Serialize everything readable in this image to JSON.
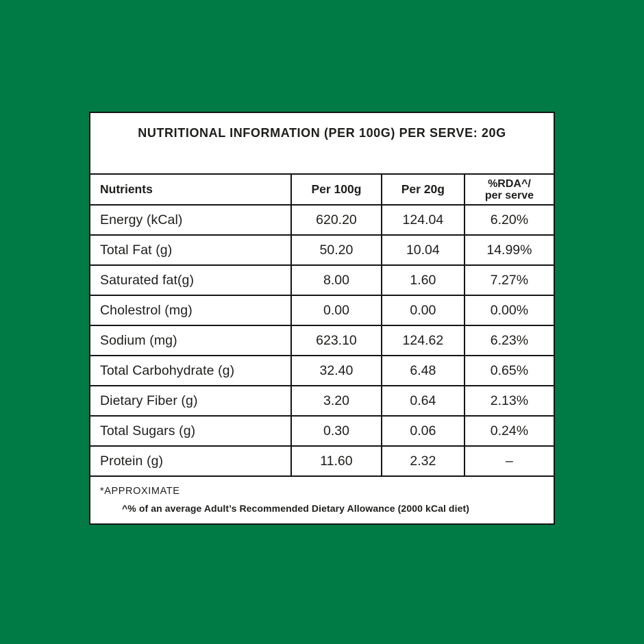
{
  "page": {
    "background_color": "#007b45",
    "table_background": "#ffffff",
    "border_color": "#141414",
    "text_color": "#1d1d1b"
  },
  "table": {
    "title": "NUTRITIONAL INFORMATION (PER 100G) PER SERVE: 20G",
    "columns": {
      "nutrients": "Nutrients",
      "per_100g": "Per 100g",
      "per_20g": "Per 20g",
      "rda_line1": "%RDA^/",
      "rda_line2": "per serve"
    },
    "rows": [
      {
        "nutrient": "Energy (kCal)",
        "per_100g": "620.20",
        "per_20g": "124.04",
        "rda": "6.20%"
      },
      {
        "nutrient": "Total Fat (g)",
        "per_100g": "50.20",
        "per_20g": "10.04",
        "rda": "14.99%"
      },
      {
        "nutrient": "Saturated fat(g)",
        "per_100g": "8.00",
        "per_20g": "1.60",
        "rda": "7.27%"
      },
      {
        "nutrient": "Cholestrol (mg)",
        "per_100g": "0.00",
        "per_20g": "0.00",
        "rda": "0.00%"
      },
      {
        "nutrient": "Sodium (mg)",
        "per_100g": "623.10",
        "per_20g": "124.62",
        "rda": "6.23%"
      },
      {
        "nutrient": "Total Carbohydrate (g)",
        "per_100g": "32.40",
        "per_20g": "6.48",
        "rda": "0.65%"
      },
      {
        "nutrient": "Dietary Fiber (g)",
        "per_100g": "3.20",
        "per_20g": "0.64",
        "rda": "2.13%"
      },
      {
        "nutrient": "Total Sugars (g)",
        "per_100g": "0.30",
        "per_20g": "0.06",
        "rda": "0.24%"
      },
      {
        "nutrient": "Protein (g)",
        "per_100g": "11.60",
        "per_20g": "2.32",
        "rda": "–"
      }
    ],
    "footer": {
      "note_approximate": "*APPROXIMATE",
      "note_rda": "^% of an average Adult’s Recommended Dietary Allowance (2000 kCal diet)"
    }
  }
}
